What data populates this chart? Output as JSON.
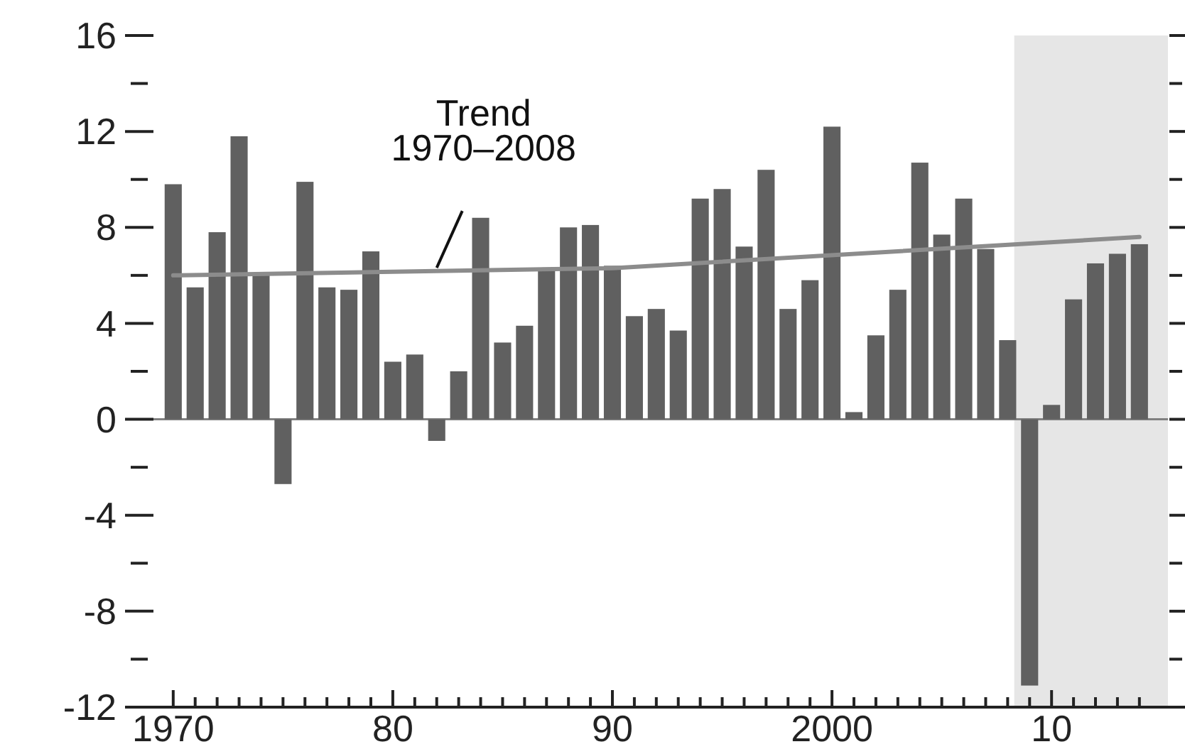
{
  "chart_data": {
    "type": "bar",
    "x": [
      1970,
      1971,
      1972,
      1973,
      1974,
      1975,
      1976,
      1977,
      1978,
      1979,
      1980,
      1981,
      1982,
      1983,
      1984,
      1985,
      1986,
      1987,
      1988,
      1989,
      1990,
      1991,
      1992,
      1993,
      1994,
      1995,
      1996,
      1997,
      1998,
      1999,
      2000,
      2001,
      2002,
      2003,
      2004,
      2005,
      2006,
      2007,
      2008,
      2009,
      2010,
      2011,
      2012,
      2013,
      2014
    ],
    "series": [
      {
        "color": "#606060",
        "values": [
          9.8,
          5.5,
          7.8,
          11.8,
          6.0,
          -2.7,
          9.9,
          5.5,
          5.4,
          7.0,
          2.4,
          2.7,
          -0.9,
          2.0,
          8.4,
          3.2,
          3.9,
          6.2,
          8.0,
          8.1,
          6.4,
          4.3,
          4.6,
          3.7,
          9.2,
          9.6,
          7.2,
          10.4,
          4.6,
          5.8,
          12.2,
          0.3,
          3.5,
          5.4,
          10.7,
          7.7,
          9.2,
          7.1,
          3.3,
          -11.1,
          0.6,
          5.0,
          6.5,
          6.9,
          7.3
        ]
      },
      {
        "type": "line",
        "color": "#8c8c8c",
        "x": [
          1970,
          1990,
          2014
        ],
        "values": [
          6.0,
          6.3,
          7.6
        ]
      }
    ],
    "xlim": [
      1969.1,
      2015.3
    ],
    "xticks": [
      {
        "value": 1970,
        "label": "1970"
      },
      {
        "value": 1971,
        "label": null
      },
      {
        "value": 1972,
        "label": null
      },
      {
        "value": 1973,
        "label": null
      },
      {
        "value": 1974,
        "label": null
      },
      {
        "value": 1975,
        "label": null
      },
      {
        "value": 1976,
        "label": null
      },
      {
        "value": 1977,
        "label": null
      },
      {
        "value": 1978,
        "label": null
      },
      {
        "value": 1979,
        "label": null
      },
      {
        "value": 1980,
        "label": "80"
      },
      {
        "value": 1981,
        "label": null
      },
      {
        "value": 1982,
        "label": null
      },
      {
        "value": 1983,
        "label": null
      },
      {
        "value": 1984,
        "label": null
      },
      {
        "value": 1985,
        "label": null
      },
      {
        "value": 1986,
        "label": null
      },
      {
        "value": 1987,
        "label": null
      },
      {
        "value": 1988,
        "label": null
      },
      {
        "value": 1989,
        "label": null
      },
      {
        "value": 1990,
        "label": "90"
      },
      {
        "value": 1991,
        "label": null
      },
      {
        "value": 1992,
        "label": null
      },
      {
        "value": 1993,
        "label": null
      },
      {
        "value": 1994,
        "label": null
      },
      {
        "value": 1995,
        "label": null
      },
      {
        "value": 1996,
        "label": null
      },
      {
        "value": 1997,
        "label": null
      },
      {
        "value": 1998,
        "label": null
      },
      {
        "value": 1999,
        "label": null
      },
      {
        "value": 2000,
        "label": "2000"
      },
      {
        "value": 2001,
        "label": null
      },
      {
        "value": 2002,
        "label": null
      },
      {
        "value": 2003,
        "label": null
      },
      {
        "value": 2004,
        "label": null
      },
      {
        "value": 2005,
        "label": null
      },
      {
        "value": 2006,
        "label": null
      },
      {
        "value": 2007,
        "label": null
      },
      {
        "value": 2008,
        "label": null
      },
      {
        "value": 2009,
        "label": null
      },
      {
        "value": 2010,
        "label": "10"
      },
      {
        "value": 2011,
        "label": null
      },
      {
        "value": 2012,
        "label": null
      },
      {
        "value": 2013,
        "label": null
      },
      {
        "value": 2014,
        "label": null
      }
    ],
    "ylim": [
      -12,
      16
    ],
    "yticks": [
      -12,
      {
        "value": -10,
        "label": null
      },
      -8,
      {
        "value": -6,
        "label": null
      },
      -4,
      {
        "value": -2,
        "label": null
      },
      0,
      {
        "value": 2,
        "label": null
      },
      4,
      {
        "value": 6,
        "label": null
      },
      8,
      {
        "value": 10,
        "label": null
      },
      12,
      {
        "value": 14,
        "label": null
      },
      16
    ],
    "bands": [
      {
        "axis": "x",
        "from": 2008.3,
        "to": 2015.3,
        "color": "#e6e6e6"
      }
    ],
    "annotations": [
      {
        "text": "Trend\n1970–2008",
        "x": 1982,
        "y": 6.2
      }
    ]
  }
}
